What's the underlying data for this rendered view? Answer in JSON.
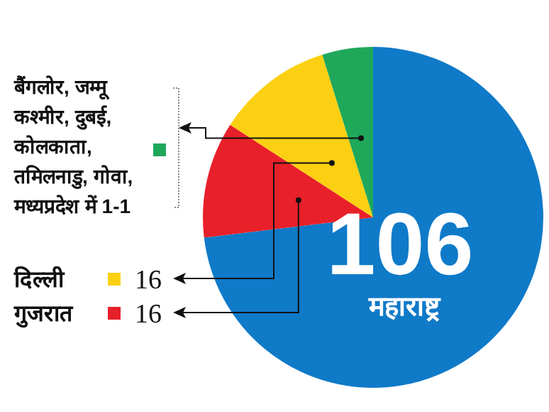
{
  "chart_data": {
    "type": "pie",
    "categories": [
      "महाराष्ट्र",
      "गुजरात",
      "दिल्ली",
      "बैंगलोर, जम्मू कश्मीर, दुबई, कोलकाता, तमिलनाडु, गोवा, मध्यप्रदेश में 1-1"
    ],
    "values": [
      106,
      16,
      16,
      7
    ],
    "colors": [
      "#0f7ac8",
      "#e8202a",
      "#fcd012",
      "#1fa85a"
    ],
    "value_labels": [
      "106",
      "16",
      "16",
      null
    ],
    "legend": "left"
  }
}
